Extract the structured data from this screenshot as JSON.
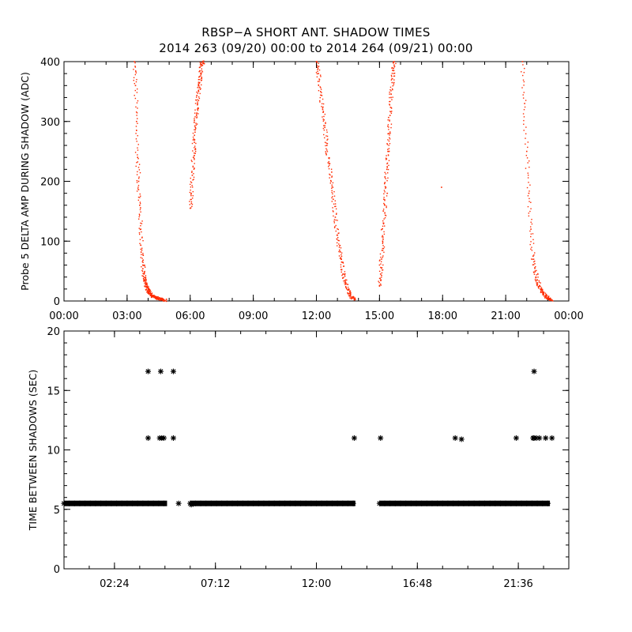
{
  "header": {
    "title": "RBSP−A SHORT ANT. SHADOW TIMES",
    "subtitle": "2014 263 (09/20) 00:00 to 2014 264 (09/21) 00:00"
  },
  "chart_data": [
    {
      "type": "scatter",
      "ylabel": "Probe 5 DELTA AMP DURING SHADOW (ADC)",
      "xlabel": "",
      "xlim": [
        0,
        24
      ],
      "ylim": [
        0,
        400
      ],
      "x_ticks": [
        0,
        3,
        6,
        9,
        12,
        15,
        18,
        21,
        24
      ],
      "x_tick_labels": [
        "00:00",
        "03:00",
        "06:00",
        "09:00",
        "12:00",
        "15:00",
        "18:00",
        "21:00",
        "00:00"
      ],
      "y_ticks": [
        0,
        100,
        200,
        300,
        400
      ],
      "y_tick_labels": [
        "0",
        "100",
        "200",
        "300",
        "400"
      ],
      "marker_color": "#ff2a00",
      "series": [
        {
          "x": [
            3.35,
            3.4,
            3.45,
            3.5,
            3.55,
            3.6,
            3.65,
            3.7,
            3.75,
            3.8,
            3.85,
            3.9,
            3.95,
            4.0,
            4.05,
            4.1,
            4.15,
            4.2,
            4.3,
            4.4,
            4.5,
            4.6,
            4.7,
            4.8
          ],
          "y": [
            400,
            360,
            300,
            240,
            200,
            160,
            120,
            85,
            60,
            45,
            35,
            28,
            22,
            18,
            15,
            12,
            10,
            8,
            6,
            5,
            4,
            3,
            2,
            1
          ]
        },
        {
          "x": [
            6.0,
            6.05,
            6.1,
            6.15,
            6.2,
            6.25,
            6.3,
            6.35,
            6.4,
            6.45,
            6.5,
            6.55,
            6.6
          ],
          "y": [
            155,
            180,
            210,
            240,
            265,
            290,
            310,
            330,
            350,
            365,
            380,
            395,
            400
          ]
        },
        {
          "x": [
            12.0,
            12.1,
            12.2,
            12.3,
            12.4,
            12.5,
            12.6,
            12.7,
            12.8,
            12.9,
            13.0,
            13.1,
            13.2,
            13.3,
            13.4,
            13.5,
            13.6,
            13.7,
            13.8
          ],
          "y": [
            400,
            380,
            350,
            320,
            290,
            260,
            230,
            200,
            170,
            140,
            110,
            85,
            65,
            45,
            30,
            18,
            10,
            5,
            2
          ]
        },
        {
          "x": [
            15.0,
            15.05,
            15.1,
            15.15,
            15.2,
            15.25,
            15.3,
            15.35,
            15.4,
            15.45,
            15.5,
            15.55,
            15.6,
            15.65,
            15.7
          ],
          "y": [
            25,
            45,
            70,
            100,
            130,
            160,
            190,
            220,
            250,
            280,
            310,
            340,
            365,
            385,
            400
          ]
        },
        {
          "x": [
            21.8,
            21.9,
            22.0,
            22.1,
            22.2,
            22.3,
            22.4,
            22.5,
            22.6,
            22.7,
            22.8,
            22.9,
            23.0,
            23.1,
            23.2
          ],
          "y": [
            400,
            330,
            250,
            180,
            120,
            75,
            50,
            35,
            25,
            18,
            12,
            8,
            5,
            3,
            2
          ]
        },
        {
          "x": [
            17.95
          ],
          "y": [
            190
          ]
        }
      ]
    },
    {
      "type": "scatter",
      "ylabel": "TIME BETWEEN SHADOWS (SEC)",
      "xlabel": "",
      "xlim": [
        0,
        24
      ],
      "ylim": [
        0,
        20
      ],
      "x_ticks": [
        2.4,
        7.2,
        12.0,
        16.8,
        21.6
      ],
      "x_tick_labels": [
        "02:24",
        "07:12",
        "12:00",
        "16:48",
        "21:36"
      ],
      "y_ticks": [
        0,
        5,
        10,
        15,
        20
      ],
      "y_tick_labels": [
        "0",
        "5",
        "10",
        "15",
        "20"
      ],
      "marker": "asterisk",
      "marker_color": "#000000",
      "baseline_value": 5.5,
      "baseline_ranges": [
        [
          0,
          4.9
        ],
        [
          6.0,
          13.85
        ],
        [
          15.0,
          23.1
        ]
      ],
      "outliers": {
        "x": [
          4.0,
          4.6,
          5.2,
          4.0,
          4.55,
          4.65,
          4.75,
          5.2,
          13.8,
          15.05,
          18.6,
          18.9,
          21.5,
          22.3,
          22.35,
          22.45,
          22.6,
          22.9,
          23.2,
          22.35,
          5.45,
          6.05
        ],
        "y": [
          16.6,
          16.6,
          16.6,
          11.0,
          11.0,
          11.0,
          11.0,
          11.0,
          11.0,
          11.0,
          11.0,
          10.9,
          11.0,
          11.0,
          11.0,
          11.0,
          11.0,
          11.0,
          11.0,
          16.6,
          5.5,
          5.4
        ]
      }
    }
  ]
}
